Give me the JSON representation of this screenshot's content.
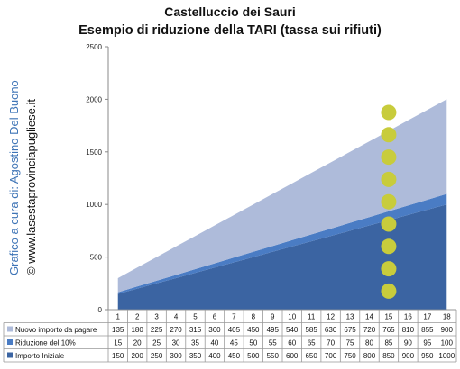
{
  "chart_data": {
    "type": "area",
    "title": "Castelluccio dei Sauri",
    "subtitle": "Esempio di riduzione della TARI (tassa sui rifiuti)",
    "categories": [
      "1",
      "2",
      "3",
      "4",
      "5",
      "6",
      "7",
      "8",
      "9",
      "10",
      "11",
      "12",
      "13",
      "14",
      "15",
      "16",
      "17",
      "18"
    ],
    "ylim": [
      0,
      2500
    ],
    "yticks": [
      "0",
      "500",
      "1000",
      "1500",
      "2000",
      "2500"
    ],
    "stacked": true,
    "grid": false,
    "series": [
      {
        "name": "Importo Iniziale",
        "color": "#3b64a2",
        "values": [
          150,
          200,
          250,
          300,
          350,
          400,
          450,
          500,
          550,
          600,
          650,
          700,
          750,
          800,
          850,
          900,
          950,
          1000
        ]
      },
      {
        "name": "Riduzione del 10%",
        "color": "#4a7cc4",
        "values": [
          15,
          20,
          25,
          30,
          35,
          40,
          45,
          50,
          55,
          60,
          65,
          70,
          75,
          80,
          85,
          90,
          95,
          100
        ]
      },
      {
        "name": "Nuovo importo da pagare",
        "color": "#aebbda",
        "values": [
          135,
          180,
          225,
          270,
          315,
          360,
          405,
          450,
          495,
          540,
          585,
          630,
          675,
          720,
          765,
          810,
          855,
          900
        ]
      }
    ],
    "highlight": {
      "category": "15",
      "color": "#c8cc3c",
      "dots": 9
    }
  },
  "credits": {
    "author": "Grafico a cura di: Agostino Del Buono",
    "site": "© www.lasestaprovinciapugliese.it"
  }
}
